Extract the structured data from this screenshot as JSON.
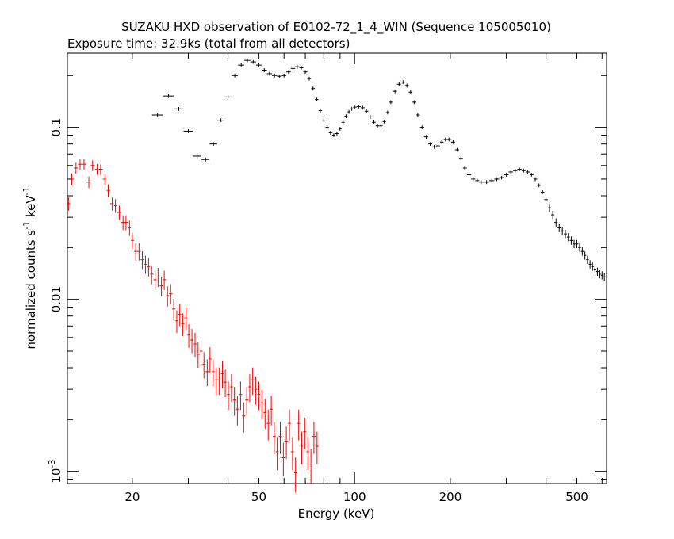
{
  "chart_data": {
    "type": "scatter",
    "title": "SUZAKU HXD observation of E0102-72_1_4_WIN (Sequence 105005010)",
    "subtitle": "Exposure time: 32.9ks (total from all detectors)",
    "xlabel": "Energy (keV)",
    "ylabel_parts": {
      "main": "normalized counts s",
      "exp1": "-1",
      "unit": " keV",
      "exp2": "-1"
    },
    "xscale": "log",
    "yscale": "log",
    "xlim": [
      12.5,
      620
    ],
    "ylim": [
      0.00085,
      0.27
    ],
    "x_ticks": [
      {
        "value": 20,
        "label": "20"
      },
      {
        "value": 50,
        "label": "50"
      },
      {
        "value": 100,
        "label": "100"
      },
      {
        "value": 200,
        "label": "200"
      },
      {
        "value": 500,
        "label": "500"
      }
    ],
    "y_ticks": [
      {
        "value": 0.1,
        "label": "0.1"
      },
      {
        "value": 0.01,
        "label": "0.01"
      },
      {
        "value": 0.001,
        "base": "10",
        "exp": "-3"
      }
    ],
    "series": [
      {
        "color": "#ff0000",
        "points": [
          [
            12.6,
            0.036
          ],
          [
            12.9,
            0.05
          ],
          [
            13.3,
            0.058
          ],
          [
            13.7,
            0.061
          ],
          [
            14.1,
            0.061
          ],
          [
            14.6,
            0.048
          ],
          [
            15.0,
            0.06
          ],
          [
            15.5,
            0.057
          ],
          [
            15.9,
            0.057
          ],
          [
            16.4,
            0.05
          ],
          [
            16.8,
            0.043
          ],
          [
            17.3,
            0.036
          ],
          [
            17.7,
            0.035
          ],
          [
            18.2,
            0.032
          ],
          [
            18.7,
            0.028
          ],
          [
            19.1,
            0.028
          ],
          [
            19.6,
            0.026
          ],
          [
            20.0,
            0.022
          ],
          [
            20.5,
            0.019
          ],
          [
            21.0,
            0.019
          ],
          [
            21.5,
            0.017
          ],
          [
            22.0,
            0.016
          ],
          [
            22.5,
            0.0155
          ],
          [
            23.0,
            0.014
          ],
          [
            23.6,
            0.013
          ],
          [
            24.1,
            0.0135
          ],
          [
            24.7,
            0.012
          ],
          [
            25.2,
            0.013
          ],
          [
            25.8,
            0.0105
          ],
          [
            26.4,
            0.0108
          ],
          [
            27.0,
            0.0088
          ],
          [
            27.6,
            0.0075
          ],
          [
            28.2,
            0.0082
          ],
          [
            28.8,
            0.0072
          ],
          [
            29.5,
            0.0078
          ],
          [
            30.1,
            0.0062
          ],
          [
            30.8,
            0.0058
          ],
          [
            31.5,
            0.0055
          ],
          [
            32.2,
            0.0048
          ],
          [
            32.9,
            0.005
          ],
          [
            33.6,
            0.0042
          ],
          [
            34.4,
            0.0038
          ],
          [
            35.1,
            0.0045
          ],
          [
            35.9,
            0.0038
          ],
          [
            36.7,
            0.0034
          ],
          [
            37.5,
            0.0034
          ],
          [
            38.4,
            0.0037
          ],
          [
            39.2,
            0.0033
          ],
          [
            40.1,
            0.0028
          ],
          [
            41.0,
            0.0031
          ],
          [
            41.9,
            0.0026
          ],
          [
            42.8,
            0.0023
          ],
          [
            43.8,
            0.0028
          ],
          [
            44.8,
            0.0021
          ],
          [
            45.8,
            0.0026
          ],
          [
            46.8,
            0.0031
          ],
          [
            47.8,
            0.0034
          ],
          [
            48.9,
            0.003
          ],
          [
            50.0,
            0.0028
          ],
          [
            51.1,
            0.0025
          ],
          [
            52.3,
            0.0022
          ],
          [
            53.5,
            0.0019
          ],
          [
            54.7,
            0.0023
          ],
          [
            55.9,
            0.0016
          ],
          [
            57.1,
            0.0013
          ],
          [
            58.4,
            0.0016
          ],
          [
            59.7,
            0.0012
          ],
          [
            61.0,
            0.0015
          ],
          [
            62.4,
            0.0019
          ],
          [
            63.8,
            0.0013
          ],
          [
            65.2,
            0.00098
          ],
          [
            66.7,
            0.0019
          ],
          [
            68.2,
            0.0014
          ],
          [
            69.7,
            0.0017
          ],
          [
            71.3,
            0.0013
          ],
          [
            72.9,
            0.0011
          ],
          [
            74.5,
            0.0016
          ],
          [
            76.2,
            0.0014
          ]
        ]
      },
      {
        "color": "#000000",
        "points": [
          [
            24.0,
            0.118
          ],
          [
            26.0,
            0.152
          ],
          [
            28.0,
            0.128
          ],
          [
            30.0,
            0.095
          ],
          [
            32.0,
            0.068
          ],
          [
            34.0,
            0.065
          ],
          [
            36.0,
            0.08
          ],
          [
            38.0,
            0.11
          ],
          [
            40.0,
            0.15
          ],
          [
            42.0,
            0.2
          ],
          [
            44.0,
            0.23
          ],
          [
            46.0,
            0.245
          ],
          [
            48.0,
            0.24
          ],
          [
            50.0,
            0.23
          ],
          [
            52.0,
            0.215
          ],
          [
            54.0,
            0.205
          ],
          [
            56.0,
            0.2
          ],
          [
            58.0,
            0.198
          ],
          [
            60.0,
            0.2
          ],
          [
            62.0,
            0.21
          ],
          [
            64.0,
            0.22
          ],
          [
            66.0,
            0.225
          ],
          [
            68.0,
            0.222
          ],
          [
            70.0,
            0.21
          ],
          [
            72.0,
            0.192
          ],
          [
            74.0,
            0.168
          ],
          [
            76.0,
            0.145
          ],
          [
            78.0,
            0.125
          ],
          [
            80.0,
            0.11
          ],
          [
            82.0,
            0.1
          ],
          [
            84.0,
            0.093
          ],
          [
            86.0,
            0.09
          ],
          [
            88.0,
            0.092
          ],
          [
            90.0,
            0.098
          ],
          [
            92.0,
            0.107
          ],
          [
            94.0,
            0.116
          ],
          [
            96.0,
            0.123
          ],
          [
            98.0,
            0.128
          ],
          [
            100.0,
            0.131
          ],
          [
            103.0,
            0.132
          ],
          [
            106.0,
            0.13
          ],
          [
            109.0,
            0.124
          ],
          [
            112.0,
            0.115
          ],
          [
            115.0,
            0.107
          ],
          [
            118.0,
            0.102
          ],
          [
            121.0,
            0.102
          ],
          [
            124.0,
            0.108
          ],
          [
            127.0,
            0.122
          ],
          [
            130.0,
            0.14
          ],
          [
            134.0,
            0.162
          ],
          [
            138.0,
            0.178
          ],
          [
            142.0,
            0.183
          ],
          [
            146.0,
            0.175
          ],
          [
            150.0,
            0.16
          ],
          [
            154.0,
            0.14
          ],
          [
            158.0,
            0.118
          ],
          [
            163.0,
            0.1
          ],
          [
            168.0,
            0.088
          ],
          [
            173.0,
            0.08
          ],
          [
            178.0,
            0.077
          ],
          [
            183.0,
            0.078
          ],
          [
            188.0,
            0.082
          ],
          [
            193.0,
            0.085
          ],
          [
            198.0,
            0.085
          ],
          [
            204.0,
            0.082
          ],
          [
            210.0,
            0.074
          ],
          [
            216.0,
            0.066
          ],
          [
            222.0,
            0.058
          ],
          [
            229.0,
            0.053
          ],
          [
            236.0,
            0.05
          ],
          [
            243.0,
            0.049
          ],
          [
            250.0,
            0.048
          ],
          [
            260.0,
            0.048
          ],
          [
            270.0,
            0.049
          ],
          [
            280.0,
            0.05
          ],
          [
            290.0,
            0.051
          ],
          [
            300.0,
            0.053
          ],
          [
            310.0,
            0.055
          ],
          [
            320.0,
            0.056
          ],
          [
            330.0,
            0.057
          ],
          [
            340.0,
            0.056
          ],
          [
            350.0,
            0.055
          ],
          [
            360.0,
            0.053
          ],
          [
            370.0,
            0.05
          ],
          [
            380.0,
            0.046
          ],
          [
            390.0,
            0.042
          ],
          [
            400.0,
            0.038
          ],
          [
            410.0,
            0.034
          ],
          [
            420.0,
            0.031
          ],
          [
            430.0,
            0.028
          ],
          [
            440.0,
            0.026
          ],
          [
            450.0,
            0.025
          ],
          [
            460.0,
            0.024
          ],
          [
            470.0,
            0.023
          ],
          [
            480.0,
            0.022
          ],
          [
            490.0,
            0.021
          ],
          [
            500.0,
            0.021
          ],
          [
            510.0,
            0.02
          ],
          [
            520.0,
            0.019
          ],
          [
            530.0,
            0.018
          ],
          [
            540.0,
            0.017
          ],
          [
            550.0,
            0.016
          ],
          [
            560.0,
            0.0155
          ],
          [
            570.0,
            0.015
          ],
          [
            580.0,
            0.0145
          ],
          [
            590.0,
            0.014
          ],
          [
            600.0,
            0.0138
          ],
          [
            610.0,
            0.0135
          ]
        ]
      }
    ]
  }
}
